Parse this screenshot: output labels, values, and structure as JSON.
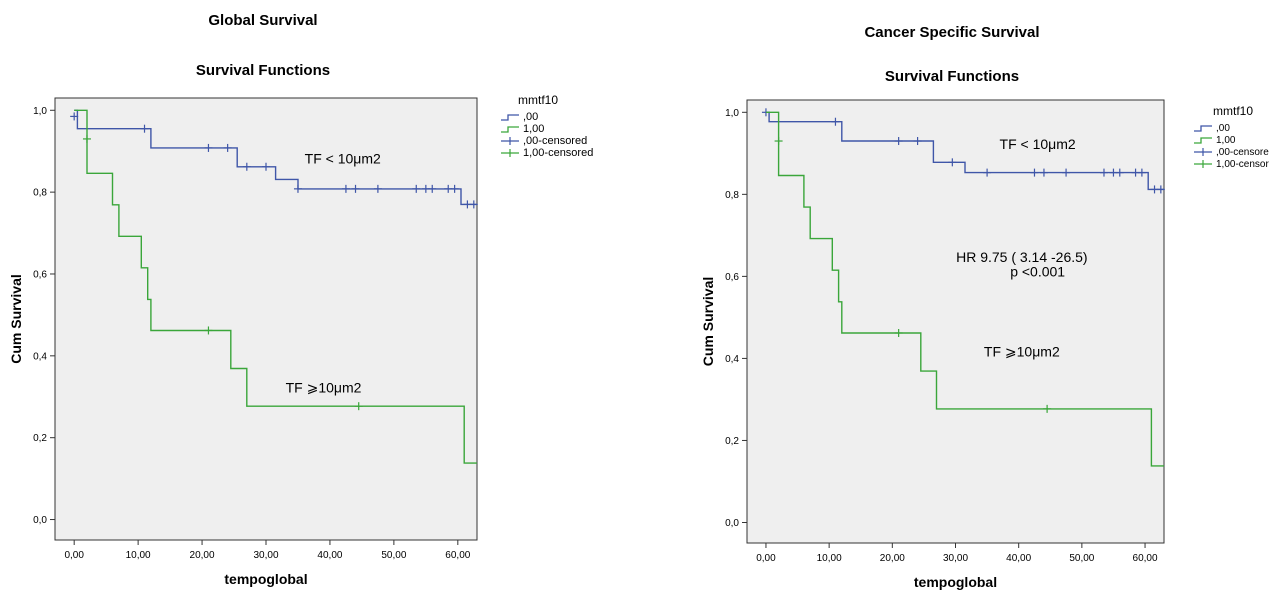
{
  "chart_data": [
    {
      "type": "line",
      "suptitle": "Global Survival",
      "title": "Survival Functions",
      "xlabel": "tempoglobal",
      "ylabel": "Cum Survival",
      "xlim": [
        -3,
        63
      ],
      "ylim": [
        -0.05,
        1.03
      ],
      "xticks": [
        "0,00",
        "10,00",
        "20,00",
        "30,00",
        "40,00",
        "50,00",
        "60,00"
      ],
      "xtick_values": [
        0,
        10,
        20,
        30,
        40,
        50,
        60
      ],
      "yticks": [
        "0,0",
        "0,2",
        "0,4",
        "0,6",
        "0,8",
        "1,0"
      ],
      "ytick_values": [
        0,
        0.2,
        0.4,
        0.6,
        0.8,
        1.0
      ],
      "legend": {
        "title": "mmtf10",
        "entries": [
          ",00",
          "1,00",
          ",00-censored",
          "1,00-censored"
        ],
        "placement": "right-outside-top"
      },
      "series": [
        {
          "name": ",00",
          "color": "#3f56a8",
          "steps": [
            [
              0,
              1.0
            ],
            [
              0.5,
              0.955
            ],
            [
              12,
              0.908
            ],
            [
              25.5,
              0.862
            ],
            [
              27,
              0.862
            ],
            [
              31.5,
              0.831
            ],
            [
              35,
              0.808
            ],
            [
              60.5,
              0.77
            ],
            [
              63,
              0.77
            ]
          ],
          "censored": [
            [
              0,
              0.985
            ],
            [
              11,
              0.955
            ],
            [
              21,
              0.908
            ],
            [
              24,
              0.908
            ],
            [
              27,
              0.862
            ],
            [
              30,
              0.862
            ],
            [
              35,
              0.808
            ],
            [
              42.5,
              0.808
            ],
            [
              44,
              0.808
            ],
            [
              47.5,
              0.808
            ],
            [
              53.5,
              0.808
            ],
            [
              55,
              0.808
            ],
            [
              56,
              0.808
            ],
            [
              58.5,
              0.808
            ],
            [
              59.5,
              0.808
            ],
            [
              61.5,
              0.77
            ],
            [
              62.5,
              0.77
            ]
          ]
        },
        {
          "name": "1,00",
          "color": "#3aa63a",
          "steps": [
            [
              0,
              1.0
            ],
            [
              2,
              0.846
            ],
            [
              6,
              0.769
            ],
            [
              7,
              0.692
            ],
            [
              10.5,
              0.615
            ],
            [
              11.5,
              0.538
            ],
            [
              12,
              0.462
            ],
            [
              24.5,
              0.369
            ],
            [
              27,
              0.277
            ],
            [
              61,
              0.138
            ],
            [
              63,
              0.138
            ]
          ],
          "censored": [
            [
              2,
              0.93
            ],
            [
              21,
              0.462
            ],
            [
              44.5,
              0.277
            ]
          ]
        }
      ],
      "annotations": [
        {
          "text": "TF < 10μm2",
          "x": 42,
          "y": 0.87
        },
        {
          "text": "TF ⩾10μm2",
          "x": 39,
          "y": 0.31
        }
      ],
      "grid": false
    },
    {
      "type": "line",
      "suptitle": "Cancer Specific Survival",
      "title": "Survival Functions",
      "xlabel": "tempoglobal",
      "ylabel": "Cum Survival",
      "xlim": [
        -3,
        63
      ],
      "ylim": [
        -0.05,
        1.03
      ],
      "xticks": [
        "0,00",
        "10,00",
        "20,00",
        "30,00",
        "40,00",
        "50,00",
        "60,00"
      ],
      "xtick_values": [
        0,
        10,
        20,
        30,
        40,
        50,
        60
      ],
      "yticks": [
        "0,0",
        "0,2",
        "0,4",
        "0,6",
        "0,8",
        "1,0"
      ],
      "ytick_values": [
        0,
        0.2,
        0.4,
        0.6,
        0.8,
        1.0
      ],
      "legend": {
        "title": "mmtf10",
        "entries": [
          ",00",
          "1,00",
          ",00-censore",
          "1,00-censor"
        ],
        "placement": "right-outside-top"
      },
      "series": [
        {
          "name": ",00",
          "color": "#3f56a8",
          "steps": [
            [
              0,
              1.0
            ],
            [
              0.5,
              0.977
            ],
            [
              12,
              0.93
            ],
            [
              25.5,
              0.93
            ],
            [
              26.5,
              0.878
            ],
            [
              30,
              0.878
            ],
            [
              31.5,
              0.853
            ],
            [
              60.5,
              0.812
            ],
            [
              63,
              0.812
            ]
          ],
          "censored": [
            [
              0,
              1.0
            ],
            [
              11,
              0.977
            ],
            [
              21,
              0.93
            ],
            [
              24,
              0.93
            ],
            [
              29.5,
              0.878
            ],
            [
              35,
              0.853
            ],
            [
              42.5,
              0.853
            ],
            [
              44,
              0.853
            ],
            [
              47.5,
              0.853
            ],
            [
              53.5,
              0.853
            ],
            [
              55,
              0.853
            ],
            [
              56,
              0.853
            ],
            [
              58.5,
              0.853
            ],
            [
              59.5,
              0.853
            ],
            [
              61.5,
              0.812
            ],
            [
              62.5,
              0.812
            ]
          ]
        },
        {
          "name": "1,00",
          "color": "#3aa63a",
          "steps": [
            [
              0,
              1.0
            ],
            [
              2,
              0.846
            ],
            [
              6,
              0.769
            ],
            [
              7,
              0.692
            ],
            [
              10.5,
              0.615
            ],
            [
              11.5,
              0.538
            ],
            [
              12,
              0.462
            ],
            [
              24.5,
              0.369
            ],
            [
              27,
              0.277
            ],
            [
              61,
              0.138
            ],
            [
              63,
              0.138
            ]
          ],
          "censored": [
            [
              2,
              0.93
            ],
            [
              21,
              0.462
            ],
            [
              44.5,
              0.277
            ]
          ]
        }
      ],
      "annotations": [
        {
          "text": "TF < 10μm2",
          "x": 43,
          "y": 0.91
        },
        {
          "text": "HR 9.75 ( 3.14 -26.5)",
          "x": 40.5,
          "y": 0.635
        },
        {
          "text": "p <0.001",
          "x": 43,
          "y": 0.6
        },
        {
          "text": "TF ⩾10μm2",
          "x": 40.5,
          "y": 0.405
        }
      ],
      "grid": false
    }
  ]
}
